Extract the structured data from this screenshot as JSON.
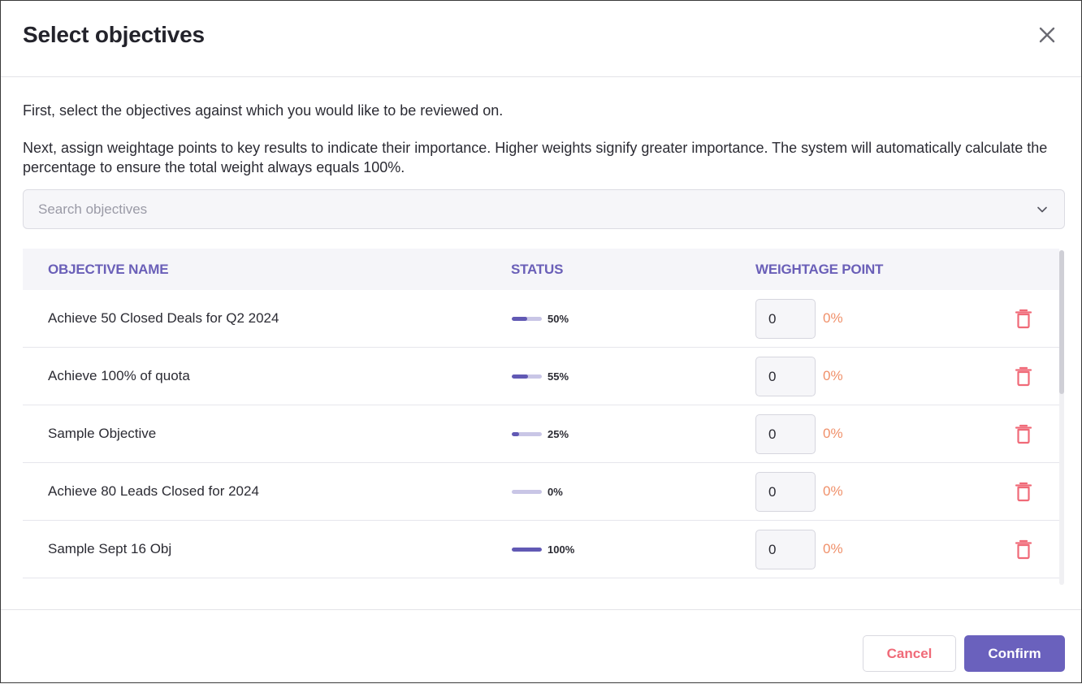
{
  "dialog": {
    "title": "Select objectives",
    "intro_line1": "First, select the objectives against which you would like to be reviewed on.",
    "intro_line2": "Next, assign weightage points to key results to indicate their importance. Higher weights signify greater importance. The system will automatically calculate the percentage to ensure the total weight always equals 100%."
  },
  "search": {
    "placeholder": "Search objectives"
  },
  "table": {
    "headers": {
      "name": "OBJECTIVE NAME",
      "status": "STATUS",
      "weightage": "WEIGHTAGE POINT"
    },
    "rows": [
      {
        "name": "Achieve 50 Closed Deals for Q2 2024",
        "progress": 50,
        "status_label": "50%",
        "weight": "0",
        "weight_pct": "0%"
      },
      {
        "name": "Achieve 100% of quota",
        "progress": 55,
        "status_label": "55%",
        "weight": "0",
        "weight_pct": "0%"
      },
      {
        "name": "Sample Objective",
        "progress": 25,
        "status_label": "25%",
        "weight": "0",
        "weight_pct": "0%"
      },
      {
        "name": "Achieve 80 Leads Closed for 2024",
        "progress": 0,
        "status_label": "0%",
        "weight": "0",
        "weight_pct": "0%"
      },
      {
        "name": "Sample Sept 16 Obj",
        "progress": 100,
        "status_label": "100%",
        "weight": "0",
        "weight_pct": "0%"
      }
    ]
  },
  "footer": {
    "cancel_label": "Cancel",
    "confirm_label": "Confirm"
  },
  "colors": {
    "accent": "#6a61bd",
    "header_text": "#6a5fb8",
    "danger": "#f06a78",
    "weight_pct": "#f0906a"
  },
  "icons": {
    "close": "close-icon",
    "dropdown": "chevron-down-icon",
    "delete": "trash-icon"
  }
}
